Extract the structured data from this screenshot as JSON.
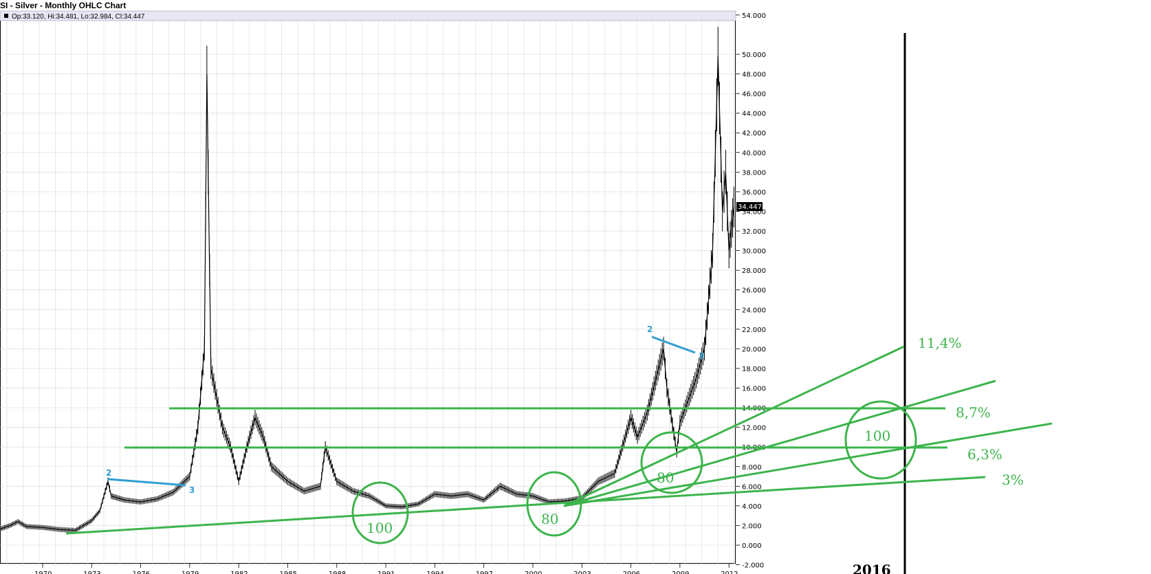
{
  "title": "SI - Silver - Monthly OHLC Chart",
  "ohlc_readout": "Op:33.120, Hi:34.481, Lo:32.984, Cl:34.447",
  "last_price_label": "34.447",
  "annotations": {
    "rates": [
      "11,4%",
      "8,7%",
      "6,3%",
      "3%"
    ],
    "circles": [
      "100",
      "80",
      "80",
      "100"
    ],
    "year": "2016",
    "wave_labels": [
      "2",
      "3",
      "2",
      "3"
    ]
  },
  "colors": {
    "price": "#000000",
    "grid": "#d8d8d8",
    "annotation_green": "#3cb44b",
    "annotation_blue": "#2e9fd0",
    "header_band": "#e6e6f5"
  },
  "chart_data": {
    "type": "line",
    "title": "SI - Silver - Monthly OHLC Chart",
    "xlabel": "",
    "ylabel": "",
    "ylim": [
      -2,
      54
    ],
    "y_ticks": [
      "54.000",
      "50.000",
      "48.000",
      "46.000",
      "44.000",
      "42.000",
      "40.000",
      "38.000",
      "36.000",
      "34.000",
      "32.000",
      "30.000",
      "28.000",
      "26.000",
      "24.000",
      "22.000",
      "20.000",
      "18.000",
      "16.000",
      "14.000",
      "12.000",
      "10.000",
      "8.000",
      "6.000",
      "4.000",
      "2.000",
      "0.000",
      "-2.000"
    ],
    "x_ticks": [
      "1970",
      "1973",
      "1976",
      "1979",
      "1982",
      "1985",
      "1988",
      "1991",
      "1994",
      "1997",
      "2000",
      "2003",
      "2006",
      "2009",
      "2012"
    ],
    "grid": true,
    "series": [
      {
        "x": [
          1967.0,
          1968.0,
          1968.5,
          1969.0,
          1970.0,
          1971.0,
          1972.0,
          1973.0,
          1973.5,
          1974.0,
          1974.2,
          1975.0,
          1976.0,
          1977.0,
          1978.0,
          1979.0,
          1979.5,
          1979.9,
          1980.05,
          1980.3,
          1981.0,
          1981.5,
          1982.0,
          1982.5,
          1983.0,
          1983.5,
          1984.0,
          1985.0,
          1986.0,
          1987.0,
          1987.3,
          1988.0,
          1989.0,
          1990.0,
          1991.0,
          1992.0,
          1993.0,
          1994.0,
          1995.0,
          1996.0,
          1997.0,
          1998.0,
          1999.0,
          2000.0,
          2001.0,
          2002.0,
          2003.0,
          2004.0,
          2005.0,
          2006.0,
          2006.4,
          2007.0,
          2008.0,
          2008.2,
          2008.8,
          2009.0,
          2010.0,
          2010.5,
          2011.0,
          2011.33,
          2011.6,
          2011.8,
          2012.0,
          2012.3
        ],
        "y": [
          1.4,
          2.0,
          2.4,
          1.9,
          1.8,
          1.6,
          1.5,
          2.5,
          3.5,
          6.5,
          5.0,
          4.6,
          4.4,
          4.7,
          5.4,
          7.0,
          12.0,
          20.0,
          48.0,
          18.0,
          12.0,
          10.0,
          6.5,
          10.0,
          13.0,
          11.0,
          8.0,
          6.5,
          5.5,
          6.0,
          10.0,
          6.5,
          5.5,
          5.0,
          4.0,
          3.9,
          4.2,
          5.2,
          5.0,
          5.2,
          4.6,
          6.0,
          5.2,
          5.0,
          4.4,
          4.5,
          4.8,
          6.5,
          7.3,
          13.0,
          11.0,
          13.5,
          20.0,
          16.0,
          9.5,
          12.5,
          17.0,
          20.0,
          30.0,
          49.8,
          34.0,
          38.0,
          30.0,
          34.447
        ]
      }
    ]
  }
}
